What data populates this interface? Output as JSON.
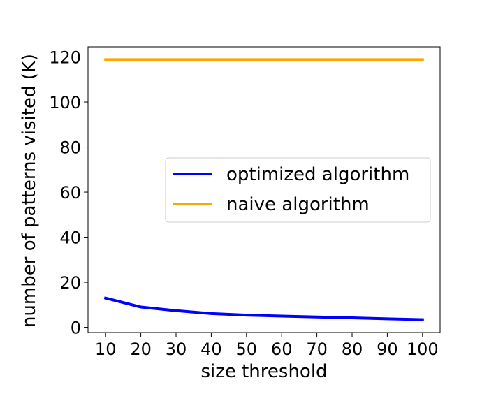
{
  "chart_data": {
    "type": "line",
    "title": "",
    "xlabel": "size threshold",
    "ylabel": "number of patterns visited (K)",
    "x": [
      10,
      20,
      30,
      40,
      50,
      60,
      70,
      80,
      90,
      100
    ],
    "xticks": [
      10,
      20,
      30,
      40,
      50,
      60,
      70,
      80,
      90,
      100
    ],
    "yticks": [
      0,
      20,
      40,
      60,
      80,
      100,
      120
    ],
    "xlim": [
      5,
      105
    ],
    "ylim": [
      -2.3,
      124.5
    ],
    "grid": false,
    "legend_position": "center-right",
    "series": [
      {
        "name": "optimized algorithm",
        "color": "#0000ff",
        "values": [
          13.0,
          9.0,
          7.4,
          6.1,
          5.4,
          5.0,
          4.6,
          4.2,
          3.8,
          3.4
        ]
      },
      {
        "name": "naive algorithm",
        "color": "#ffa500",
        "values": [
          118.8,
          118.8,
          118.8,
          118.8,
          118.8,
          118.8,
          118.8,
          118.8,
          118.8,
          118.8
        ]
      }
    ]
  }
}
